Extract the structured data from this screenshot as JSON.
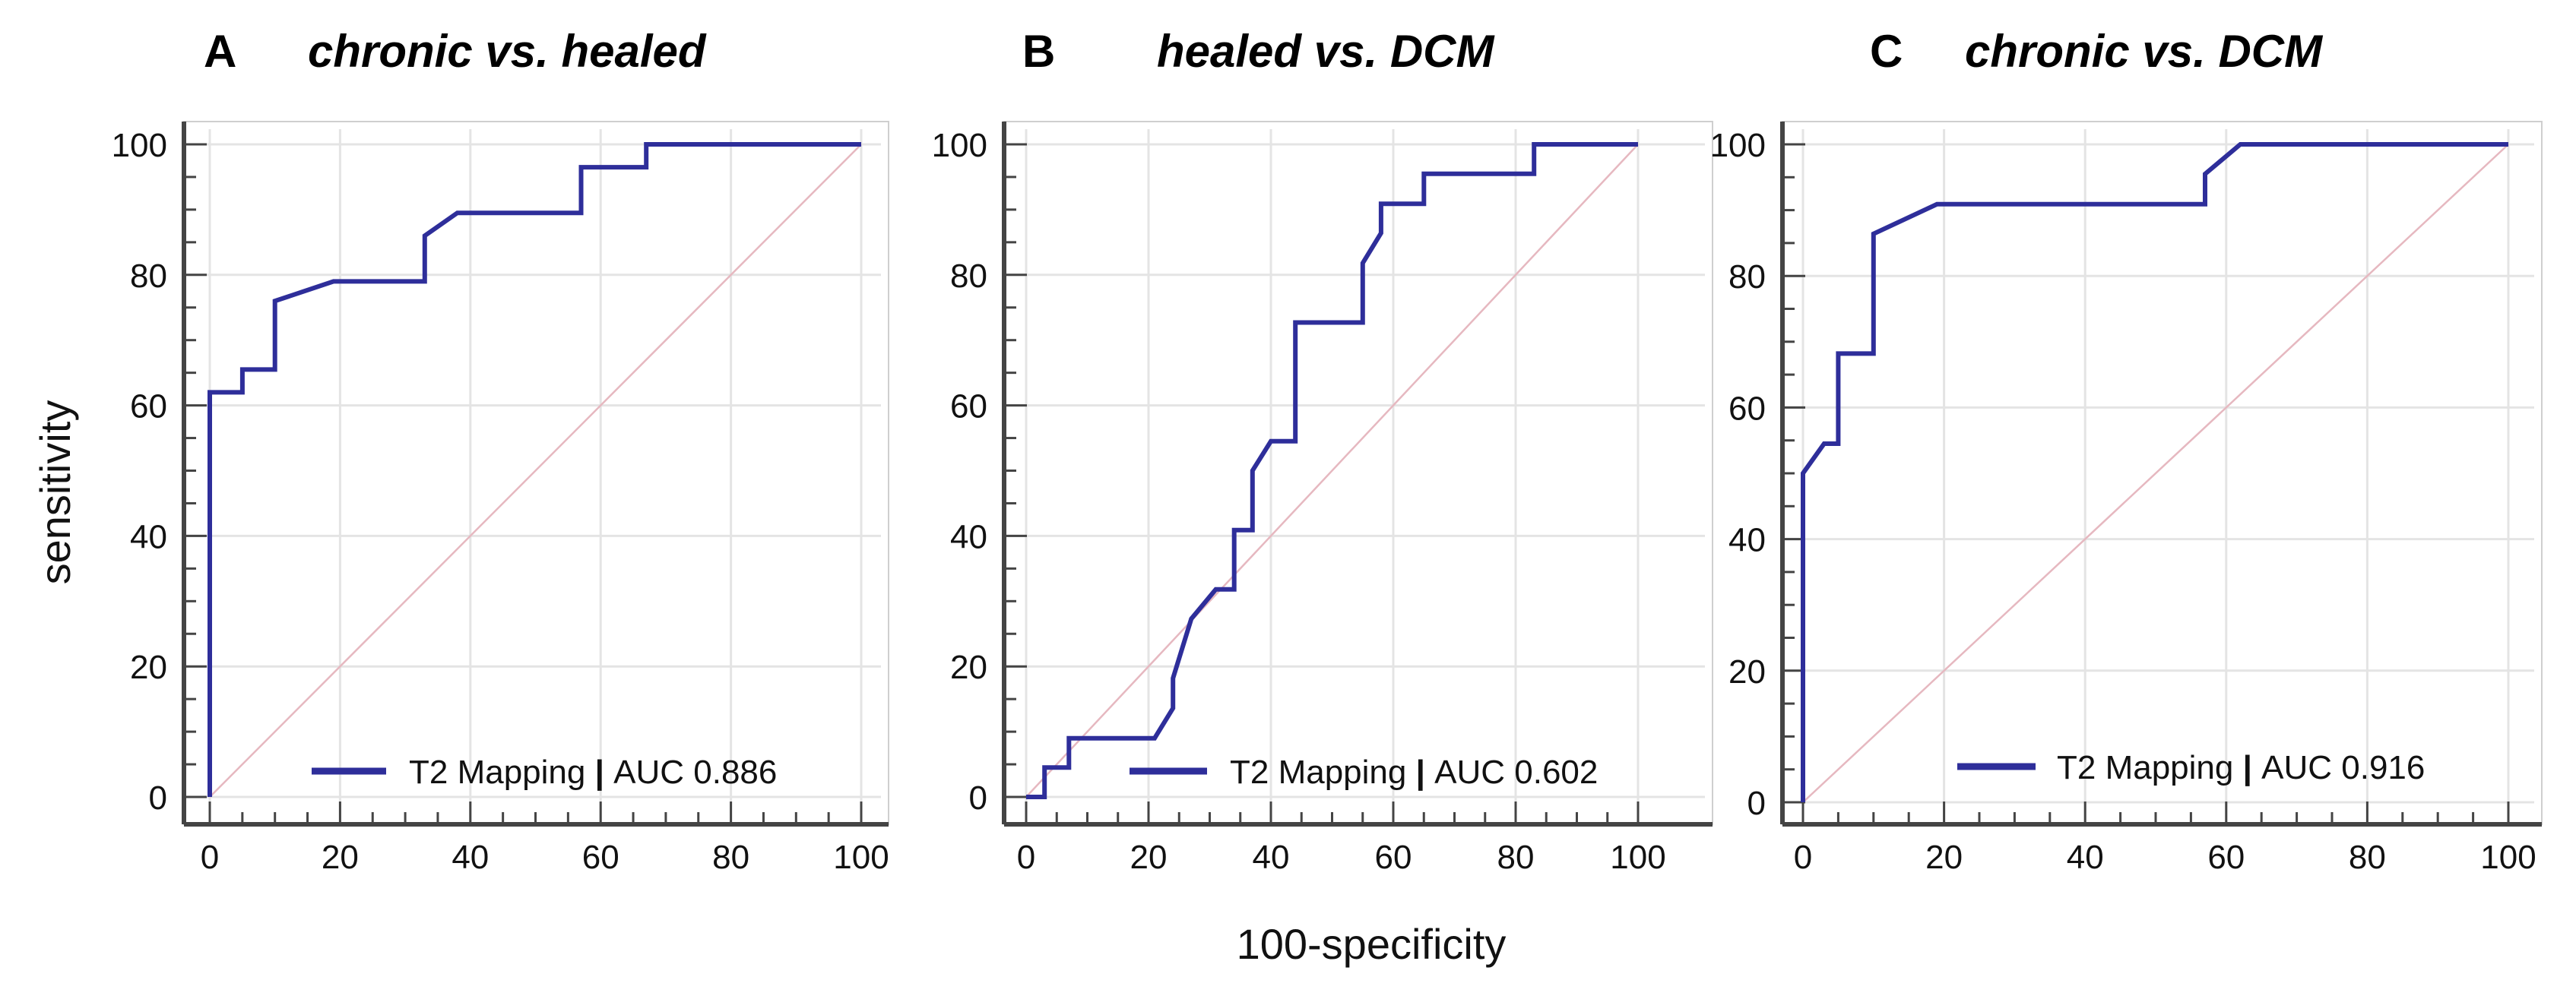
{
  "figure": {
    "ylabel": "sensitivity",
    "xlabel": "100-specificity",
    "colors": {
      "curve": "#2e2e9a",
      "diagonal": "#e6b8c0",
      "grid": "#e4e4e4",
      "axis": "#444444"
    }
  },
  "chart_data": [
    {
      "type": "line",
      "panel": "A",
      "title": "chronic vs. healed",
      "xlabel": "100-specificity",
      "ylabel": "sensitivity",
      "xlim": [
        0,
        100
      ],
      "ylim": [
        0,
        100
      ],
      "xticks": [
        "0",
        "20",
        "40",
        "60",
        "80",
        "100"
      ],
      "yticks": [
        "0",
        "20",
        "40",
        "60",
        "80",
        "100"
      ],
      "grid": true,
      "legend": {
        "label": "T2 Mapping",
        "sep": "|",
        "auc": "AUC 0.886",
        "placement": "bottom-right"
      },
      "series": [
        {
          "name": "T2 Mapping",
          "points": [
            [
              0,
              0
            ],
            [
              0,
              62
            ],
            [
              5,
              62
            ],
            [
              5,
              65.5
            ],
            [
              10,
              65.5
            ],
            [
              10,
              76
            ],
            [
              19,
              79
            ],
            [
              33,
              79
            ],
            [
              33,
              86
            ],
            [
              38,
              89.5
            ],
            [
              57,
              89.5
            ],
            [
              57,
              96.5
            ],
            [
              67,
              96.5
            ],
            [
              67,
              100
            ],
            [
              100,
              100
            ]
          ]
        }
      ],
      "reference": [
        [
          0,
          0
        ],
        [
          100,
          100
        ]
      ]
    },
    {
      "type": "line",
      "panel": "B",
      "title": "healed vs. DCM",
      "xlabel": "100-specificity",
      "ylabel": "sensitivity",
      "xlim": [
        0,
        100
      ],
      "ylim": [
        0,
        100
      ],
      "xticks": [
        "0",
        "20",
        "40",
        "60",
        "80",
        "100"
      ],
      "yticks": [
        "0",
        "20",
        "40",
        "60",
        "80",
        "100"
      ],
      "grid": true,
      "legend": {
        "label": "T2 Mapping",
        "sep": "|",
        "auc": "AUC 0.602",
        "placement": "bottom-right"
      },
      "series": [
        {
          "name": "T2 Mapping",
          "points": [
            [
              0,
              0
            ],
            [
              3,
              0
            ],
            [
              3,
              4.5
            ],
            [
              7,
              4.5
            ],
            [
              7,
              9
            ],
            [
              21,
              9
            ],
            [
              24,
              13.6
            ],
            [
              24,
              18.2
            ],
            [
              27,
              27.3
            ],
            [
              31,
              31.8
            ],
            [
              34,
              31.8
            ],
            [
              34,
              40.9
            ],
            [
              37,
              40.9
            ],
            [
              37,
              50
            ],
            [
              40,
              54.5
            ],
            [
              44,
              54.5
            ],
            [
              44,
              72.7
            ],
            [
              55,
              72.7
            ],
            [
              55,
              81.8
            ],
            [
              58,
              86.4
            ],
            [
              58,
              90.9
            ],
            [
              65,
              90.9
            ],
            [
              65,
              95.5
            ],
            [
              83,
              95.5
            ],
            [
              83,
              100
            ],
            [
              100,
              100
            ]
          ]
        }
      ],
      "reference": [
        [
          0,
          0
        ],
        [
          100,
          100
        ]
      ]
    },
    {
      "type": "line",
      "panel": "C",
      "title": "chronic vs. DCM",
      "xlabel": "100-specificity",
      "ylabel": "sensitivity",
      "xlim": [
        0,
        100
      ],
      "ylim": [
        0,
        100
      ],
      "xticks": [
        "0",
        "20",
        "40",
        "60",
        "80",
        "100"
      ],
      "yticks": [
        "0",
        "20",
        "40",
        "60",
        "80",
        "100"
      ],
      "grid": true,
      "legend": {
        "label": "T2 Mapping",
        "sep": "|",
        "auc": "AUC 0.916",
        "placement": "bottom-right"
      },
      "series": [
        {
          "name": "T2 Mapping",
          "points": [
            [
              0,
              0
            ],
            [
              0,
              50
            ],
            [
              3,
              54.5
            ],
            [
              5,
              54.5
            ],
            [
              5,
              68.2
            ],
            [
              10,
              68.2
            ],
            [
              10,
              86.4
            ],
            [
              19,
              90.9
            ],
            [
              57,
              90.9
            ],
            [
              57,
              95.5
            ],
            [
              62,
              100
            ],
            [
              100,
              100
            ]
          ]
        }
      ],
      "reference": [
        [
          0,
          0
        ],
        [
          100,
          100
        ]
      ]
    }
  ]
}
